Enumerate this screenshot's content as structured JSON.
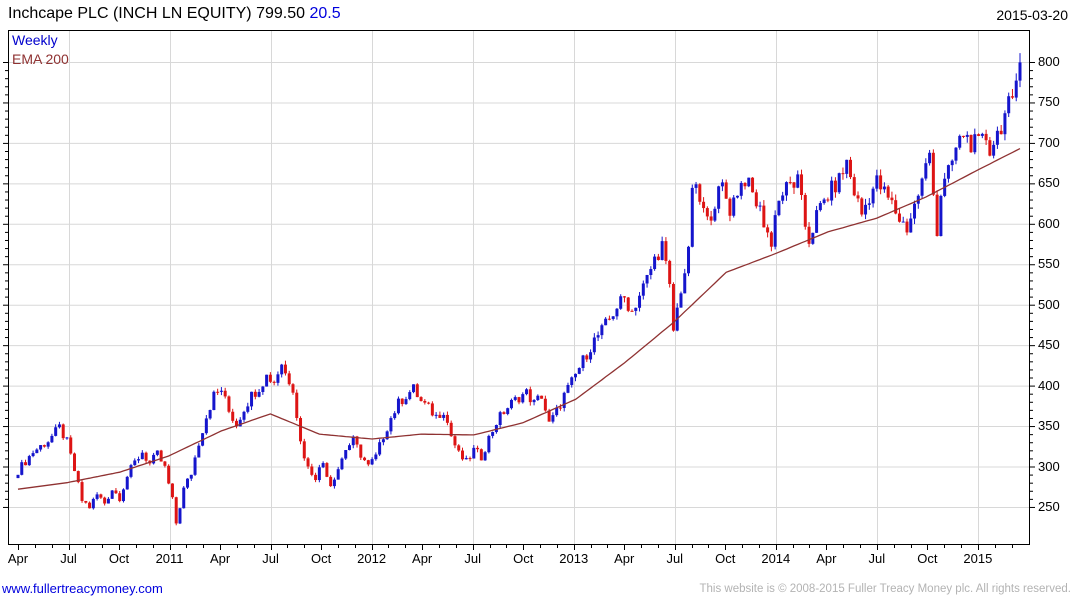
{
  "header": {
    "title": "Inchcape PLC (INCH LN EQUITY)",
    "price": "799.50",
    "change": "20.5",
    "date": "2015-03-20"
  },
  "legend": {
    "series_label": "Weekly",
    "ema_label": "EMA 200"
  },
  "footer": {
    "link": "www.fullertreacymoney.com",
    "copyright": "This website is © 2008-2015 Fuller Treacy Money plc. All rights reserved."
  },
  "colors": {
    "up": "#1515cc",
    "down": "#dd1414",
    "ema": "#8f3232",
    "grid": "#d8d8d8",
    "axis": "#000000",
    "accent_blue": "#0000dd",
    "muted_gray": "#b3b3b3"
  },
  "chart_data": {
    "type": "candlestick",
    "title": "Inchcape PLC (INCH LN EQUITY)",
    "timeframe": "Weekly",
    "overlay": "EMA 200",
    "last_date": "2015-03-20",
    "last_close": 799.5,
    "last_change": 20.5,
    "y_axis": {
      "min": 250,
      "max": 800,
      "tick_step": 50,
      "minor_step": 10,
      "ticks": [
        250,
        300,
        350,
        400,
        450,
        500,
        550,
        600,
        650,
        700,
        750,
        800
      ]
    },
    "x_axis": {
      "start": "2010-04",
      "end": "2015-03",
      "tick_labels": [
        {
          "label": "Apr",
          "month": 0
        },
        {
          "label": "Jul",
          "month": 3
        },
        {
          "label": "Oct",
          "month": 6
        },
        {
          "label": "2011",
          "month": 9
        },
        {
          "label": "Apr",
          "month": 12
        },
        {
          "label": "Jul",
          "month": 15
        },
        {
          "label": "Oct",
          "month": 18
        },
        {
          "label": "2012",
          "month": 21
        },
        {
          "label": "Apr",
          "month": 24
        },
        {
          "label": "Jul",
          "month": 27
        },
        {
          "label": "Oct",
          "month": 30
        },
        {
          "label": "2013",
          "month": 33
        },
        {
          "label": "Apr",
          "month": 36
        },
        {
          "label": "Jul",
          "month": 39
        },
        {
          "label": "Oct",
          "month": 42
        },
        {
          "label": "2014",
          "month": 45
        },
        {
          "label": "Apr",
          "month": 48
        },
        {
          "label": "Jul",
          "month": 51
        },
        {
          "label": "Oct",
          "month": 54
        },
        {
          "label": "2015",
          "month": 57
        }
      ],
      "months_total": 60,
      "vertical_grid_months": [
        3,
        9,
        15,
        21,
        27,
        33,
        39,
        45,
        51,
        57
      ]
    },
    "weeks": 267,
    "close_anchors": [
      [
        0,
        295
      ],
      [
        4,
        318
      ],
      [
        8,
        332
      ],
      [
        11,
        348
      ],
      [
        13,
        330
      ],
      [
        15,
        295
      ],
      [
        17,
        258
      ],
      [
        19,
        250
      ],
      [
        21,
        265
      ],
      [
        23,
        255
      ],
      [
        25,
        272
      ],
      [
        27,
        262
      ],
      [
        29,
        288
      ],
      [
        31,
        305
      ],
      [
        33,
        318
      ],
      [
        35,
        303
      ],
      [
        37,
        315
      ],
      [
        39,
        298
      ],
      [
        41,
        258
      ],
      [
        42,
        230
      ],
      [
        44,
        272
      ],
      [
        46,
        292
      ],
      [
        48,
        330
      ],
      [
        50,
        362
      ],
      [
        52,
        388
      ],
      [
        54,
        395
      ],
      [
        56,
        368
      ],
      [
        58,
        352
      ],
      [
        60,
        372
      ],
      [
        62,
        388
      ],
      [
        64,
        398
      ],
      [
        66,
        412
      ],
      [
        68,
        405
      ],
      [
        70,
        428
      ],
      [
        71,
        415
      ],
      [
        73,
        398
      ],
      [
        75,
        330
      ],
      [
        77,
        298
      ],
      [
        79,
        288
      ],
      [
        81,
        305
      ],
      [
        83,
        278
      ],
      [
        85,
        298
      ],
      [
        87,
        322
      ],
      [
        89,
        332
      ],
      [
        91,
        315
      ],
      [
        93,
        300
      ],
      [
        95,
        312
      ],
      [
        97,
        338
      ],
      [
        99,
        360
      ],
      [
        101,
        378
      ],
      [
        103,
        388
      ],
      [
        105,
        396
      ],
      [
        107,
        380
      ],
      [
        109,
        372
      ],
      [
        111,
        362
      ],
      [
        113,
        370
      ],
      [
        115,
        338
      ],
      [
        117,
        315
      ],
      [
        119,
        305
      ],
      [
        121,
        320
      ],
      [
        123,
        312
      ],
      [
        125,
        335
      ],
      [
        127,
        355
      ],
      [
        129,
        368
      ],
      [
        131,
        378
      ],
      [
        133,
        386
      ],
      [
        135,
        391
      ],
      [
        137,
        378
      ],
      [
        139,
        388
      ],
      [
        141,
        352
      ],
      [
        143,
        368
      ],
      [
        145,
        388
      ],
      [
        147,
        404
      ],
      [
        149,
        422
      ],
      [
        151,
        440
      ],
      [
        153,
        456
      ],
      [
        155,
        468
      ],
      [
        157,
        482
      ],
      [
        159,
        498
      ],
      [
        161,
        508
      ],
      [
        163,
        492
      ],
      [
        165,
        512
      ],
      [
        167,
        532
      ],
      [
        169,
        556
      ],
      [
        171,
        574
      ],
      [
        173,
        520
      ],
      [
        174,
        468
      ],
      [
        176,
        520
      ],
      [
        178,
        562
      ],
      [
        179,
        648
      ],
      [
        181,
        628
      ],
      [
        183,
        602
      ],
      [
        185,
        628
      ],
      [
        187,
        646
      ],
      [
        189,
        618
      ],
      [
        191,
        642
      ],
      [
        193,
        656
      ],
      [
        195,
        636
      ],
      [
        197,
        616
      ],
      [
        199,
        590
      ],
      [
        200,
        570
      ],
      [
        201,
        618
      ],
      [
        203,
        638
      ],
      [
        205,
        648
      ],
      [
        207,
        652
      ],
      [
        209,
        598
      ],
      [
        210,
        580
      ],
      [
        212,
        610
      ],
      [
        214,
        628
      ],
      [
        216,
        642
      ],
      [
        218,
        654
      ],
      [
        220,
        676
      ],
      [
        222,
        640
      ],
      [
        224,
        612
      ],
      [
        226,
        635
      ],
      [
        228,
        652
      ],
      [
        230,
        638
      ],
      [
        232,
        624
      ],
      [
        234,
        606
      ],
      [
        236,
        595
      ],
      [
        238,
        622
      ],
      [
        240,
        652
      ],
      [
        242,
        688
      ],
      [
        243,
        645
      ],
      [
        244,
        588
      ],
      [
        245,
        638
      ],
      [
        247,
        662
      ],
      [
        249,
        692
      ],
      [
        251,
        712
      ],
      [
        253,
        700
      ],
      [
        255,
        697
      ],
      [
        257,
        707
      ],
      [
        258,
        692
      ],
      [
        260,
        712
      ],
      [
        262,
        734
      ],
      [
        264,
        756
      ],
      [
        265,
        777
      ],
      [
        266,
        799.5
      ]
    ],
    "ema_anchors": [
      [
        0,
        272
      ],
      [
        13,
        280
      ],
      [
        27,
        293
      ],
      [
        40,
        313
      ],
      [
        54,
        344
      ],
      [
        67,
        365
      ],
      [
        80,
        340
      ],
      [
        94,
        334
      ],
      [
        107,
        340
      ],
      [
        121,
        339
      ],
      [
        134,
        354
      ],
      [
        148,
        383
      ],
      [
        161,
        428
      ],
      [
        174,
        478
      ],
      [
        188,
        540
      ],
      [
        201,
        563
      ],
      [
        215,
        590
      ],
      [
        228,
        607
      ],
      [
        241,
        633
      ],
      [
        255,
        667
      ],
      [
        266,
        693
      ]
    ],
    "last_candle": {
      "open": 777,
      "high": 811,
      "low": 769,
      "close": 799.5
    }
  }
}
